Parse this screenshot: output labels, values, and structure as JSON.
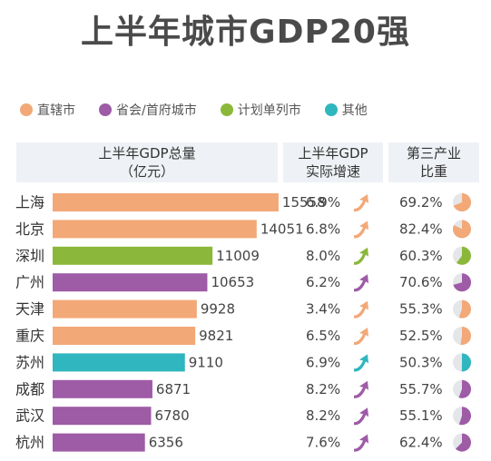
{
  "title": "上半年城市GDP20强",
  "legend": [
    {
      "label": "直辖市",
      "color": "#F2A877"
    },
    {
      "label": "省会/首府城市",
      "color": "#9E5BA6"
    },
    {
      "label": "计划单列市",
      "color": "#8BB83A"
    },
    {
      "label": "其他",
      "color": "#2FB6BE"
    }
  ],
  "headers": {
    "gdp_total": [
      "上半年GDP总量",
      "（亿元）"
    ],
    "growth": [
      "上半年GDP",
      "实际增速"
    ],
    "tertiary": [
      "第三产业",
      "比重"
    ]
  },
  "chart_data": {
    "type": "bar",
    "categories": [
      "上海",
      "北京",
      "深圳",
      "广州",
      "天津",
      "重庆",
      "苏州",
      "成都",
      "武汉",
      "杭州"
    ],
    "city_type": [
      "直辖市",
      "直辖市",
      "计划单列市",
      "省会/首府城市",
      "直辖市",
      "直辖市",
      "其他",
      "省会/首府城市",
      "省会/首府城市",
      "省会/首府城市"
    ],
    "series": [
      {
        "name": "上半年GDP总量（亿元）",
        "values": [
          15558,
          14051,
          11009,
          10653,
          9928,
          9821,
          9110,
          6871,
          6780,
          6356
        ]
      },
      {
        "name": "上半年GDP实际增速",
        "values": [
          6.9,
          6.8,
          8.0,
          6.2,
          3.4,
          6.5,
          6.9,
          8.2,
          8.2,
          7.6
        ]
      },
      {
        "name": "第三产业比重",
        "values": [
          69.2,
          82.4,
          60.3,
          70.6,
          55.3,
          52.5,
          50.3,
          55.7,
          55.1,
          62.4
        ]
      }
    ],
    "growth_labels": [
      "6.9%",
      "6.8%",
      "8.0%",
      "6.2%",
      "3.4%",
      "6.5%",
      "6.9%",
      "8.2%",
      "8.2%",
      "7.6%"
    ],
    "tertiary_labels": [
      "69.2%",
      "82.4%",
      "60.3%",
      "70.6%",
      "55.3%",
      "52.5%",
      "50.3%",
      "55.7%",
      "55.1%",
      "62.4%"
    ],
    "ylim": [
      0,
      16000
    ],
    "grid": false
  }
}
